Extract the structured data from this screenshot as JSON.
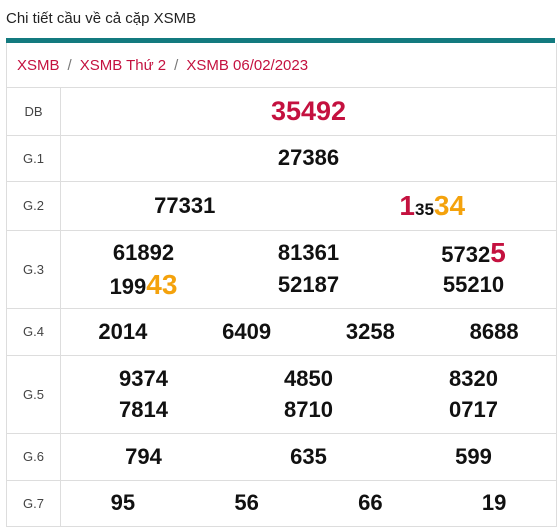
{
  "page_title": "Chi tiết cầu về cả cặp XSMB",
  "breadcrumb": [
    "XSMB",
    "XSMB Thứ 2",
    "XSMB 06/02/2023"
  ],
  "rows": {
    "db": {
      "label": "DB",
      "numbers": [
        "35492"
      ]
    },
    "g1": {
      "label": "G.1",
      "numbers": [
        "27386"
      ]
    },
    "g2": {
      "label": "G.2",
      "n1": "77331",
      "n2_a": "1",
      "n2_b": "35",
      "n2_c": "34"
    },
    "g3": {
      "label": "G.3",
      "line1": [
        "61892",
        "81361"
      ],
      "line1_c_a": "5732",
      "line1_c_b": "5",
      "line2_a_a": "199",
      "line2_a_b": "43",
      "line2": [
        "52187",
        "55210"
      ]
    },
    "g4": {
      "label": "G.4",
      "numbers": [
        "2014",
        "6409",
        "3258",
        "8688"
      ]
    },
    "g5": {
      "label": "G.5",
      "line1": [
        "9374",
        "4850",
        "8320"
      ],
      "line2": [
        "7814",
        "8710",
        "0717"
      ]
    },
    "g6": {
      "label": "G.6",
      "numbers": [
        "794",
        "635",
        "599"
      ]
    },
    "g7": {
      "label": "G.7",
      "numbers": [
        "95",
        "56",
        "66",
        "19"
      ]
    }
  },
  "colors": {
    "accent": "#137a7f",
    "highlight_red": "#c4113f",
    "highlight_orange": "#f4a20c"
  }
}
